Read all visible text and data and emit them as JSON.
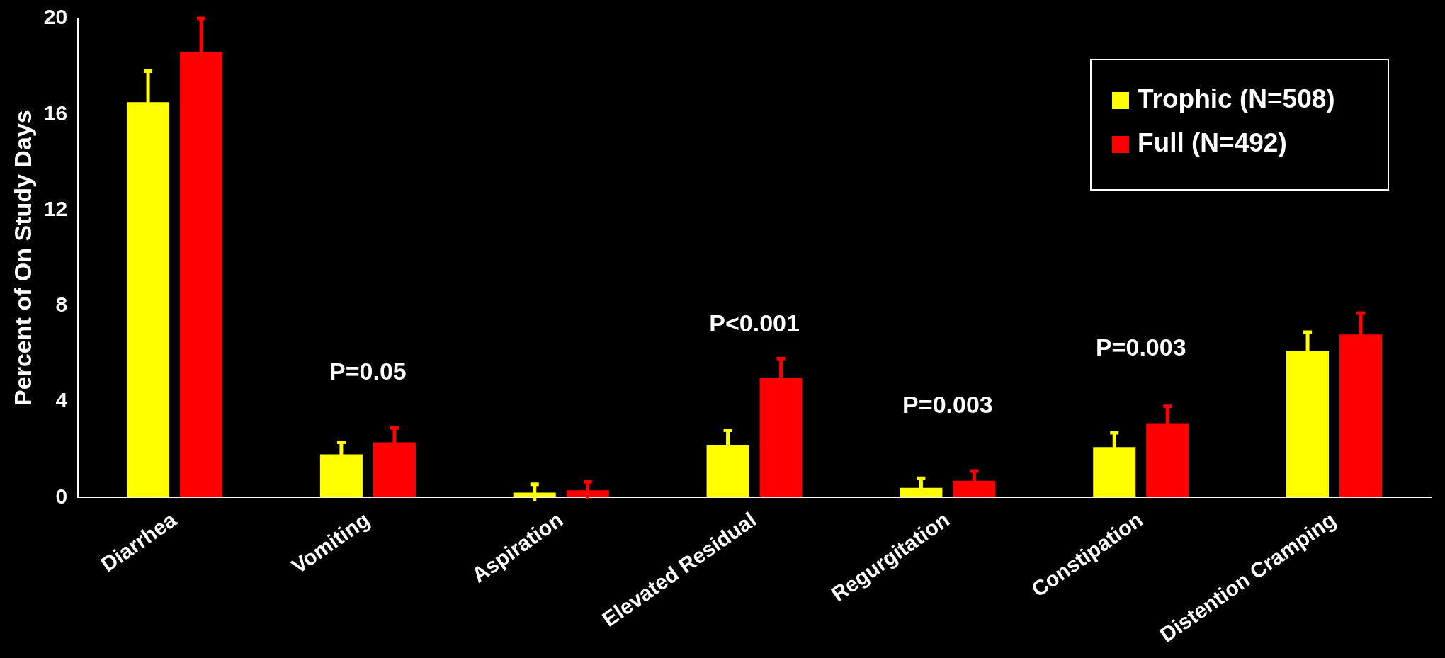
{
  "chart_data": {
    "type": "bar",
    "ylabel": "Percent of On Study Days",
    "categories": [
      "Diarrhea",
      "Vomiting",
      "Aspiration",
      "Elevated Residual",
      "Regurgitation",
      "Constipation",
      "Distention Cramping"
    ],
    "series": [
      {
        "name": "Trophic (N=508)",
        "color": "#ffff00",
        "values": [
          16.5,
          1.8,
          0.2,
          2.2,
          0.4,
          2.1,
          6.1
        ],
        "errors": [
          1.3,
          0.5,
          0.35,
          0.6,
          0.4,
          0.6,
          0.8
        ]
      },
      {
        "name": "Full (N=492)",
        "color": "#ff0000",
        "values": [
          18.6,
          2.3,
          0.3,
          5,
          0.7,
          3.1,
          6.8
        ],
        "errors": [
          1.4,
          0.6,
          0.35,
          0.8,
          0.4,
          0.7,
          0.9
        ]
      }
    ],
    "ylim": [
      0,
      20
    ],
    "yticks": [
      0,
      4,
      8,
      12,
      16,
      20
    ],
    "grid": false,
    "legend": "top right",
    "annotations": [
      "P=0.05",
      "P<0.001",
      "P=0.003",
      "P=0.003"
    ]
  }
}
